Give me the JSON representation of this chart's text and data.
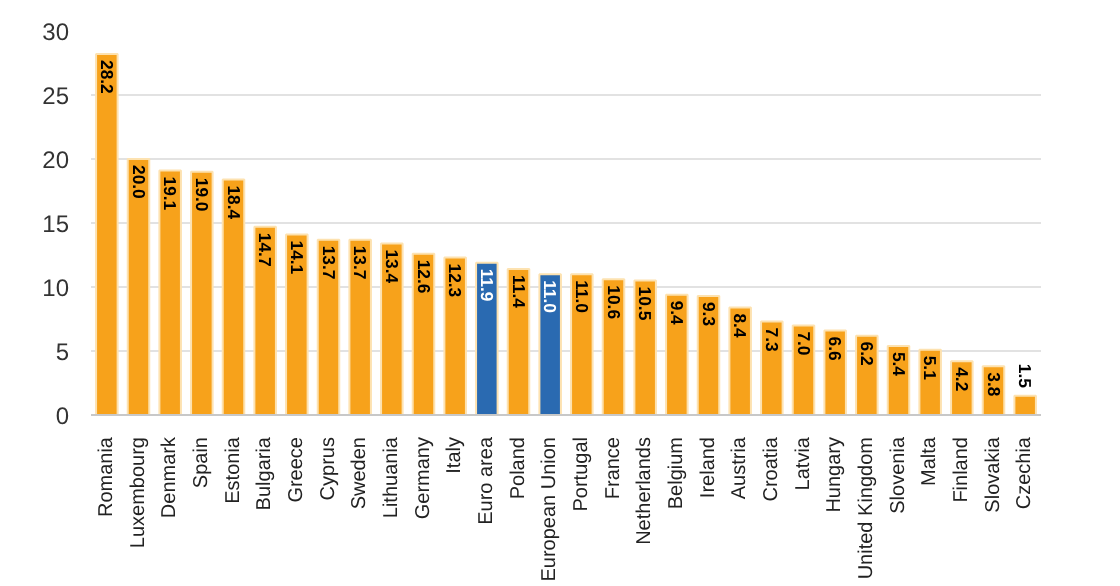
{
  "chart_data": {
    "type": "bar",
    "categories": [
      "Romania",
      "Luxembourg",
      "Denmark",
      "Spain",
      "Estonia",
      "Bulgaria",
      "Greece",
      "Cyprus",
      "Sweden",
      "Lithuania",
      "Germany",
      "Italy",
      "Euro area",
      "Poland",
      "European Union",
      "Portugal",
      "France",
      "Netherlands",
      "Belgium",
      "Ireland",
      "Austria",
      "Croatia",
      "Latvia",
      "Hungary",
      "United Kingdom",
      "Slovenia",
      "Malta",
      "Finland",
      "Slovakia",
      "Czechia"
    ],
    "values": [
      28.2,
      20.0,
      19.1,
      19.0,
      18.4,
      14.7,
      14.1,
      13.7,
      13.7,
      13.4,
      12.6,
      12.3,
      11.9,
      11.4,
      11.0,
      11.0,
      10.6,
      10.5,
      9.4,
      9.3,
      8.4,
      7.3,
      7.0,
      6.6,
      6.2,
      5.4,
      5.1,
      4.2,
      3.8,
      1.5
    ],
    "colors": [
      "#f7a21b",
      "#f7a21b",
      "#f7a21b",
      "#f7a21b",
      "#f7a21b",
      "#f7a21b",
      "#f7a21b",
      "#f7a21b",
      "#f7a21b",
      "#f7a21b",
      "#f7a21b",
      "#f7a21b",
      "#2a6ab1",
      "#f7a21b",
      "#2a6ab1",
      "#f7a21b",
      "#f7a21b",
      "#f7a21b",
      "#f7a21b",
      "#f7a21b",
      "#f7a21b",
      "#f7a21b",
      "#f7a21b",
      "#f7a21b",
      "#f7a21b",
      "#f7a21b",
      "#f7a21b",
      "#f7a21b",
      "#f7a21b",
      "#f7a21b"
    ],
    "value_labels": [
      "28.2",
      "20.0",
      "19.1",
      "19.0",
      "18.4",
      "14.7",
      "14.1",
      "13.7",
      "13.7",
      "13.4",
      "12.6",
      "12.3",
      "11.9",
      "11.4",
      "11.0",
      "11.0",
      "10.6",
      "10.5",
      "9.4",
      "9.3",
      "8.4",
      "7.3",
      "7.0",
      "6.6",
      "6.2",
      "5.4",
      "5.1",
      "4.2",
      "3.8",
      "1.5"
    ],
    "ylim": [
      0,
      30
    ],
    "yticks": [
      0,
      5,
      10,
      15,
      20,
      25,
      30
    ],
    "grid": "y"
  }
}
